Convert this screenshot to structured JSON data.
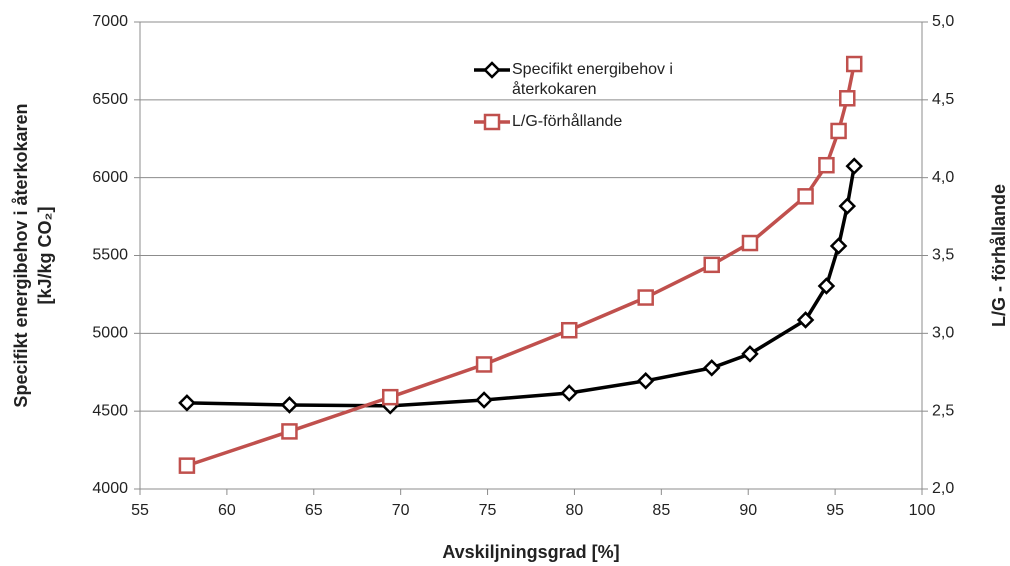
{
  "chart_data": {
    "type": "line",
    "x": [
      57.7,
      63.6,
      69.4,
      74.8,
      79.7,
      84.1,
      87.9,
      90.1,
      93.3,
      94.5,
      95.2,
      95.7,
      96.1
    ],
    "series": [
      {
        "name": "Specifikt energibehov i återkokaren",
        "color": "#000000",
        "marker": "diamond",
        "values": [
          4553,
          4540,
          4534,
          4572,
          4617,
          4695,
          4778,
          4868,
          5086,
          5304,
          5561,
          5817,
          6074
        ]
      },
      {
        "name": "L/G-förhållande",
        "color": "#c0504d",
        "marker": "square",
        "axis": "y2",
        "values": [
          2.15,
          2.37,
          2.59,
          2.8,
          3.02,
          3.23,
          3.44,
          3.58,
          3.88,
          4.08,
          4.3,
          4.51,
          4.73
        ]
      }
    ],
    "xlabel": "Avskiljningsgrad [%]",
    "ylabel": [
      "Specifikt energibehov i återkokaren",
      "[kJ/kg CO₂]"
    ],
    "y2label": "L/G - förhållande",
    "xlim": [
      55,
      100
    ],
    "xticks": [
      55,
      60,
      65,
      70,
      75,
      80,
      85,
      90,
      95,
      100
    ],
    "ylim": [
      4000,
      7000
    ],
    "yticks": [
      4000,
      4500,
      5000,
      5500,
      6000,
      6500,
      7000
    ],
    "y2lim": [
      2,
      5
    ],
    "y2ticks": [
      {
        "value": 2,
        "label": "2,0"
      },
      {
        "value": 2.5,
        "label": "2,5"
      },
      {
        "value": 3,
        "label": "3,0"
      },
      {
        "value": 3.5,
        "label": "3,5"
      },
      {
        "value": 4,
        "label": "4,0"
      },
      {
        "value": 4.5,
        "label": "4,5"
      },
      {
        "value": 5,
        "label": "5,0"
      }
    ],
    "grid": true,
    "legend": "top"
  }
}
